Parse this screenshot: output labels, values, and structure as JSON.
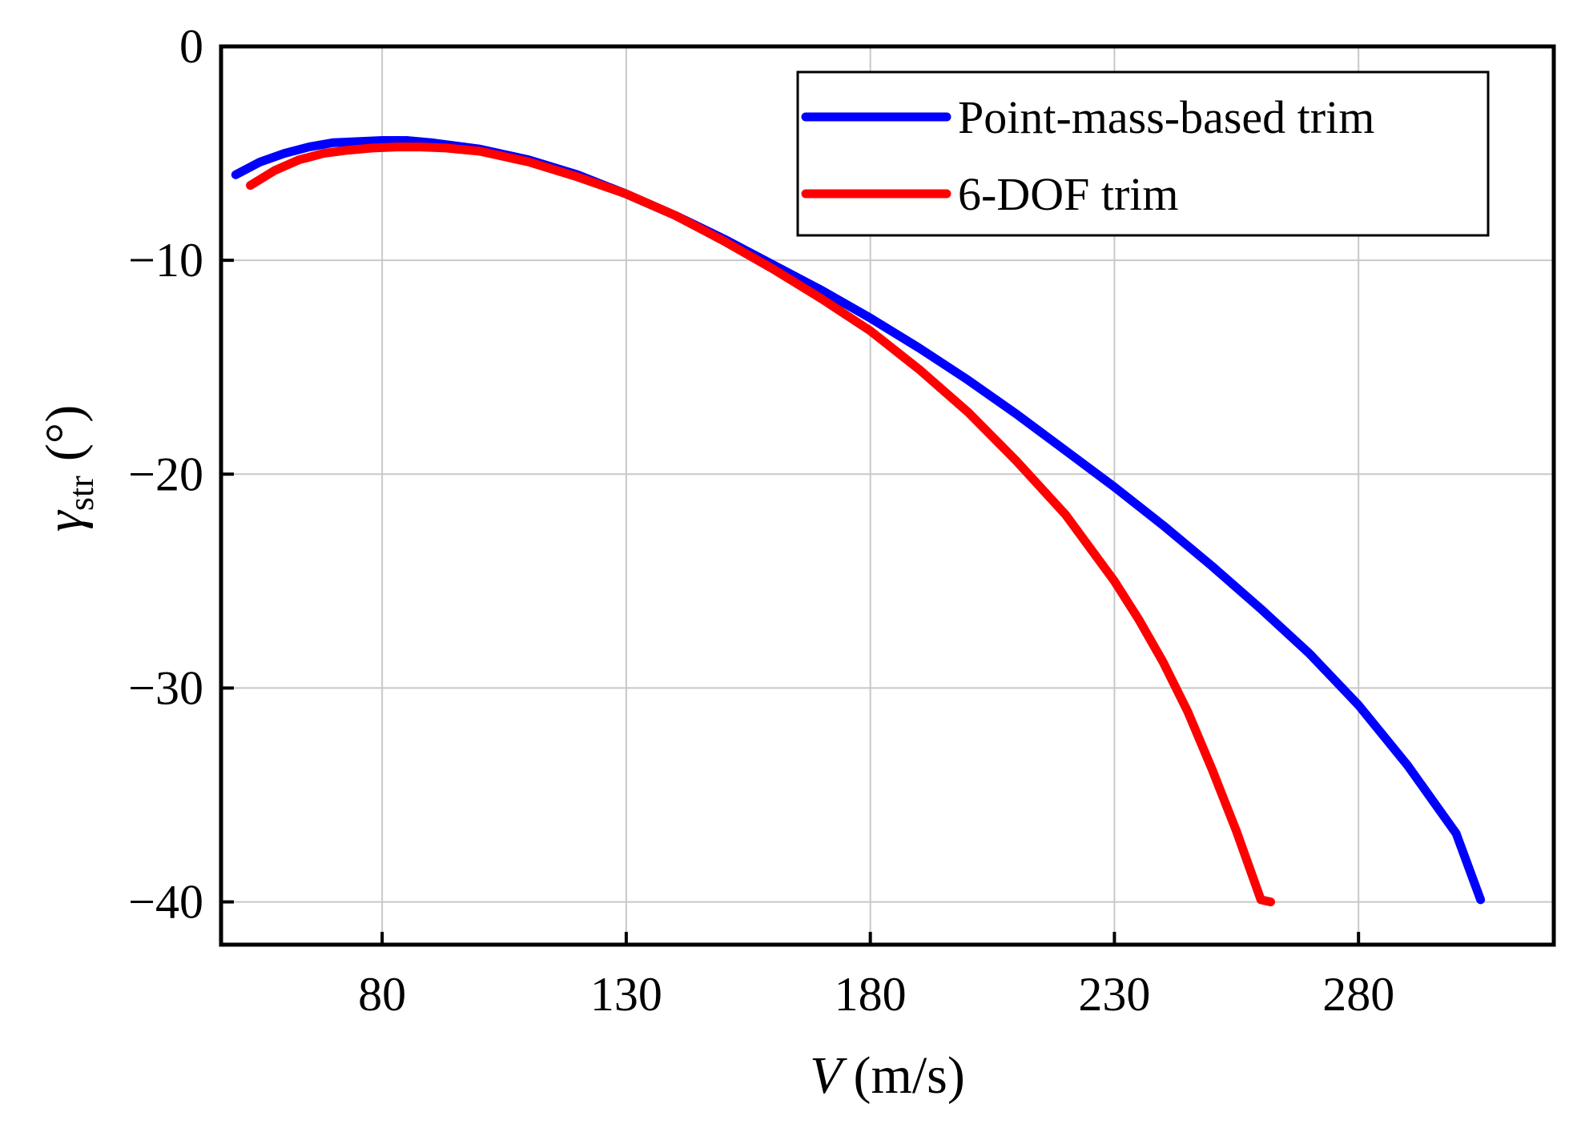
{
  "chart_data": {
    "type": "line",
    "xlabel": "V (m/s)",
    "xlabel_var": "V",
    "xlabel_unit": "(m/s)",
    "ylabel": "γstr (°)",
    "ylabel_var": "γ",
    "ylabel_sub": "str",
    "ylabel_unit": "(°)",
    "xlim": [
      47,
      320
    ],
    "ylim": [
      -42,
      0
    ],
    "xticks": [
      80,
      130,
      180,
      230,
      280
    ],
    "xtick_labels": [
      "80",
      "130",
      "180",
      "230",
      "280"
    ],
    "yticks": [
      0,
      -10,
      -20,
      -30,
      -40
    ],
    "ytick_labels": [
      "0",
      "−10",
      "−20",
      "−30",
      "−40"
    ],
    "grid": true,
    "legend": "top-right",
    "series": [
      {
        "name": "Point-mass-based trim",
        "color": "#0000ff",
        "x": [
          50,
          55,
          60,
          65,
          70,
          75,
          80,
          85,
          90,
          100,
          110,
          120,
          130,
          140,
          150,
          160,
          170,
          180,
          190,
          200,
          210,
          220,
          230,
          240,
          250,
          260,
          270,
          280,
          290,
          300,
          305
        ],
        "y": [
          -6.0,
          -5.4,
          -5.0,
          -4.7,
          -4.5,
          -4.45,
          -4.4,
          -4.4,
          -4.5,
          -4.8,
          -5.3,
          -6.0,
          -6.9,
          -7.9,
          -9.0,
          -10.2,
          -11.4,
          -12.7,
          -14.1,
          -15.6,
          -17.2,
          -18.9,
          -20.6,
          -22.4,
          -24.3,
          -26.3,
          -28.4,
          -30.8,
          -33.6,
          -36.8,
          -39.9
        ]
      },
      {
        "name": "6-DOF trim",
        "color": "#ff0000",
        "x": [
          53,
          58,
          63,
          68,
          73,
          78,
          83,
          88,
          93,
          100,
          110,
          120,
          130,
          140,
          150,
          160,
          170,
          180,
          190,
          200,
          210,
          220,
          230,
          235,
          240,
          245,
          250,
          255,
          260,
          262
        ],
        "y": [
          -6.5,
          -5.8,
          -5.3,
          -5.0,
          -4.85,
          -4.75,
          -4.7,
          -4.7,
          -4.75,
          -4.9,
          -5.4,
          -6.1,
          -6.9,
          -7.9,
          -9.1,
          -10.4,
          -11.8,
          -13.3,
          -15.1,
          -17.1,
          -19.4,
          -21.9,
          -25.0,
          -26.8,
          -28.8,
          -31.1,
          -33.8,
          -36.7,
          -39.9,
          -40.0
        ]
      }
    ]
  }
}
